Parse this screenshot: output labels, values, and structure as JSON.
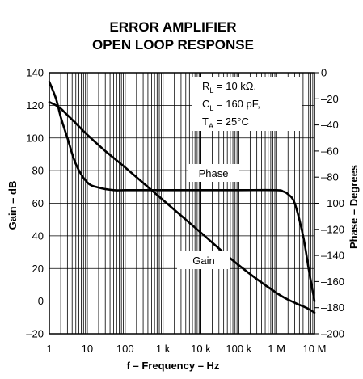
{
  "chart_data": {
    "type": "line",
    "title": [
      "ERROR AMPLIFIER",
      "OPEN LOOP RESPONSE"
    ],
    "xlabel": "f – Frequency – Hz",
    "ylabel_left": "Gain – dB",
    "ylabel_right": "Phase – Degrees",
    "x_scale": "log",
    "xlim": [
      1,
      10000000
    ],
    "ylim_left": [
      -20,
      140
    ],
    "ylim_right": [
      -200,
      0
    ],
    "x_ticks": [
      {
        "value": 1,
        "label": "1"
      },
      {
        "value": 10,
        "label": "10"
      },
      {
        "value": 100,
        "label": "100"
      },
      {
        "value": 1000,
        "label": "1 k"
      },
      {
        "value": 10000,
        "label": "10 k"
      },
      {
        "value": 100000,
        "label": "100 k"
      },
      {
        "value": 1000000,
        "label": "1 M"
      },
      {
        "value": 10000000,
        "label": "10 M"
      }
    ],
    "y_left_ticks": [
      {
        "value": 140,
        "label": "140"
      },
      {
        "value": 120,
        "label": "120"
      },
      {
        "value": 100,
        "label": "100"
      },
      {
        "value": 80,
        "label": "80"
      },
      {
        "value": 60,
        "label": "60"
      },
      {
        "value": 40,
        "label": "40"
      },
      {
        "value": 20,
        "label": "20"
      },
      {
        "value": 0,
        "label": "0"
      },
      {
        "value": -20,
        "label": "–20"
      }
    ],
    "y_right_ticks": [
      {
        "value": 0,
        "label": "0"
      },
      {
        "value": -20,
        "label": "–20"
      },
      {
        "value": -40,
        "label": "–40"
      },
      {
        "value": -60,
        "label": "–60"
      },
      {
        "value": -80,
        "label": "–80"
      },
      {
        "value": -100,
        "label": "–100"
      },
      {
        "value": -120,
        "label": "–120"
      },
      {
        "value": -140,
        "label": "–140"
      },
      {
        "value": -160,
        "label": "–160"
      },
      {
        "value": -180,
        "label": "–180"
      },
      {
        "value": -200,
        "label": "–200"
      }
    ],
    "grid": true,
    "conditions": [
      {
        "main": "R",
        "sub": "L",
        "rest": " = 10 kΩ,"
      },
      {
        "main": "C",
        "sub": "L",
        "rest": " = 160 pF,"
      },
      {
        "main": "T",
        "sub": "A",
        "rest": " = 25°C"
      }
    ],
    "series": [
      {
        "name": "Gain",
        "axis": "left",
        "x": [
          1,
          1.5,
          2,
          3,
          5,
          10,
          30,
          100,
          1000,
          10000,
          100000,
          1000000,
          3000000,
          6000000,
          10000000
        ],
        "y": [
          122,
          120,
          118,
          114,
          109,
          102,
          92,
          82,
          62,
          42,
          22,
          5,
          -1,
          -4,
          -7
        ]
      },
      {
        "name": "Phase",
        "axis": "right",
        "x": [
          1,
          1.5,
          2,
          3,
          5,
          10,
          20,
          50,
          100,
          1000,
          10000,
          100000,
          1000000,
          1500000,
          2000000,
          3000000,
          5000000,
          7000000,
          10000000
        ],
        "y": [
          -7,
          -20,
          -34,
          -50,
          -70,
          -84,
          -88,
          -90,
          -90,
          -90,
          -90,
          -90,
          -90,
          -91,
          -93,
          -100,
          -125,
          -150,
          -175
        ]
      }
    ]
  }
}
